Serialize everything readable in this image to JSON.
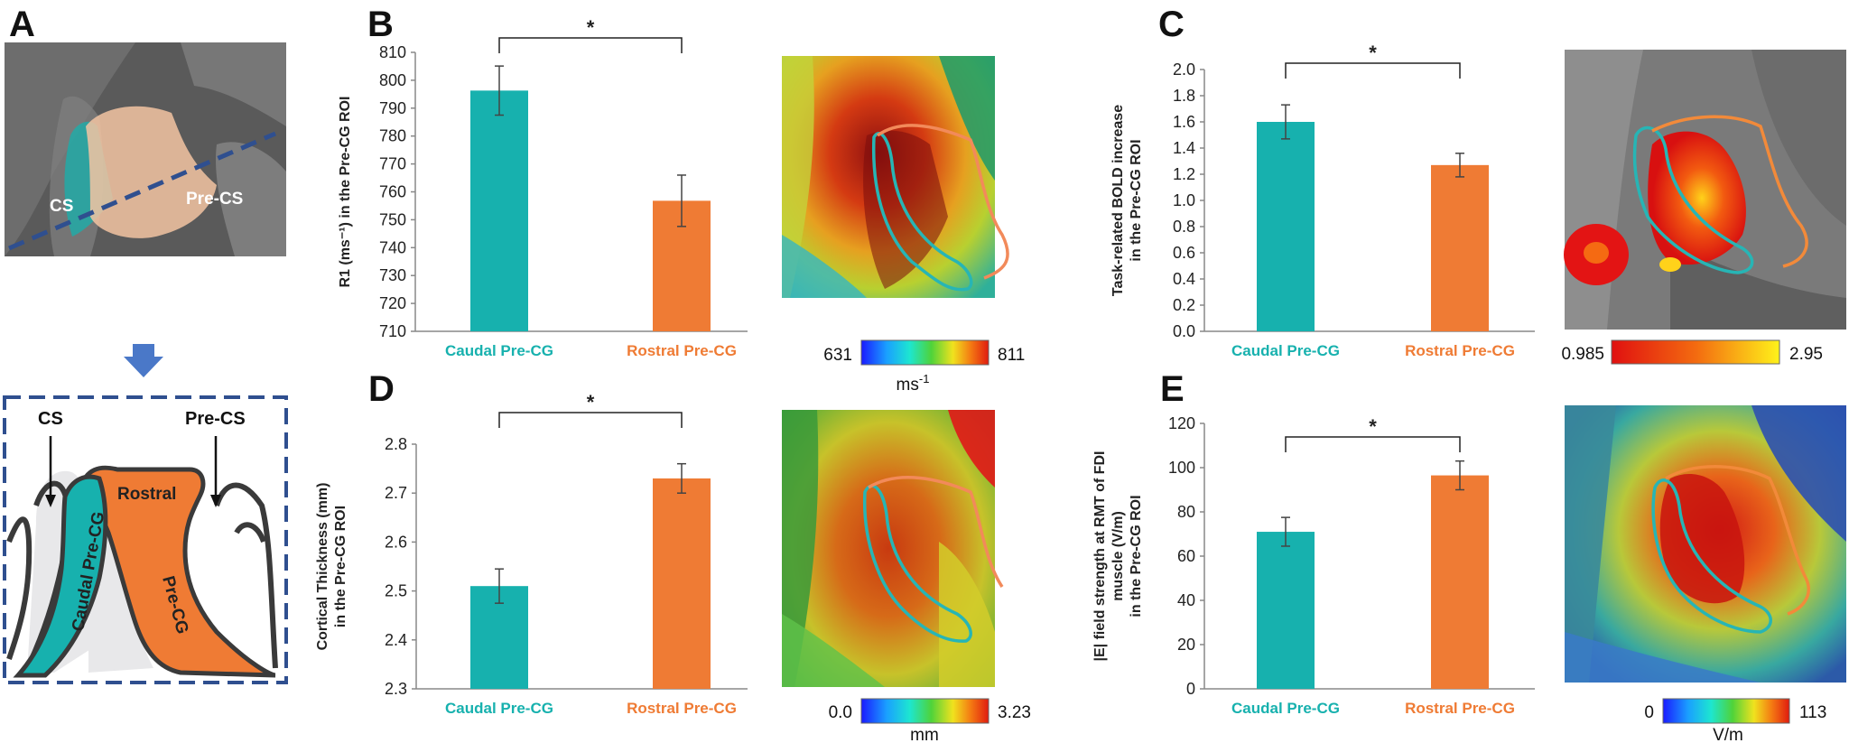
{
  "panel_labels": {
    "a": "A",
    "b": "B",
    "c": "C",
    "d": "D",
    "e": "E"
  },
  "colors": {
    "caudal": "#17b1ae",
    "rostral": "#ef7b34",
    "dashed_outline": "#2f4f8f",
    "arrow": "#4a78c8",
    "cortex_orange": "#ef7b34",
    "cortex_teal": "#17b1ae",
    "cortex_outline": "#3a3a3a"
  },
  "panel_a": {
    "brain_labels": {
      "cs": "CS",
      "pre_cs": "Pre-CS"
    },
    "diagram_labels": {
      "cs": "CS",
      "pre_cs": "Pre-CS",
      "rostral": "Rostral",
      "pre_cg": "Pre-CG",
      "caudal_pre_cg": "Caudal Pre-CG"
    }
  },
  "chart_data": [
    {
      "id": "B",
      "type": "bar",
      "categories": [
        "Caudal Pre-CG",
        "Rostral Pre-CG"
      ],
      "values": [
        796.3,
        756.8
      ],
      "errors": [
        8.8,
        9.2
      ],
      "ylim": [
        710,
        810
      ],
      "yticks": [
        710,
        720,
        730,
        740,
        750,
        760,
        770,
        780,
        790,
        800,
        810
      ],
      "ylabel": "R1 (ms⁻¹) in the Pre-CG ROI",
      "significance": "*",
      "colorbar": {
        "min": "631",
        "max": "811",
        "unit": "ms-1"
      }
    },
    {
      "id": "C",
      "type": "bar",
      "categories": [
        "Caudal Pre-CG",
        "Rostral Pre-CG"
      ],
      "values": [
        1.6,
        1.27
      ],
      "errors": [
        0.13,
        0.09
      ],
      "ylim": [
        0,
        2
      ],
      "yticks": [
        0.0,
        0.2,
        0.4,
        0.6,
        0.8,
        1.0,
        1.2,
        1.4,
        1.6,
        1.8,
        2.0
      ],
      "ylabel_lines": [
        "Task-related BOLD increase",
        "in the Pre-CG ROI"
      ],
      "significance": "*",
      "colorbar": {
        "min": "0.985",
        "max": "2.95",
        "unit": ""
      }
    },
    {
      "id": "D",
      "type": "bar",
      "categories": [
        "Caudal Pre-CG",
        "Rostral Pre-CG"
      ],
      "values": [
        2.51,
        2.73
      ],
      "errors": [
        0.035,
        0.03
      ],
      "ylim": [
        2.3,
        2.8
      ],
      "yticks": [
        2.3,
        2.4,
        2.5,
        2.6,
        2.7,
        2.8
      ],
      "ylabel_lines": [
        "Cortical Thickness (mm)",
        "in the Pre-CG ROI"
      ],
      "significance": "*",
      "colorbar": {
        "min": "0.0",
        "max": "3.23",
        "unit": "mm"
      }
    },
    {
      "id": "E",
      "type": "bar",
      "categories": [
        "Caudal Pre-CG",
        "Rostral Pre-CG"
      ],
      "values": [
        71,
        96.5
      ],
      "errors": [
        6.5,
        6.5
      ],
      "ylim": [
        0,
        120
      ],
      "yticks": [
        0,
        20,
        40,
        60,
        80,
        100,
        120
      ],
      "ylabel_lines": [
        "|E| field strength at RMT of FDI",
        "muscle (V/m)",
        "in the Pre-CG ROI"
      ],
      "significance": "*",
      "colorbar": {
        "min": "0",
        "max": "113",
        "unit": "V/m"
      }
    }
  ]
}
